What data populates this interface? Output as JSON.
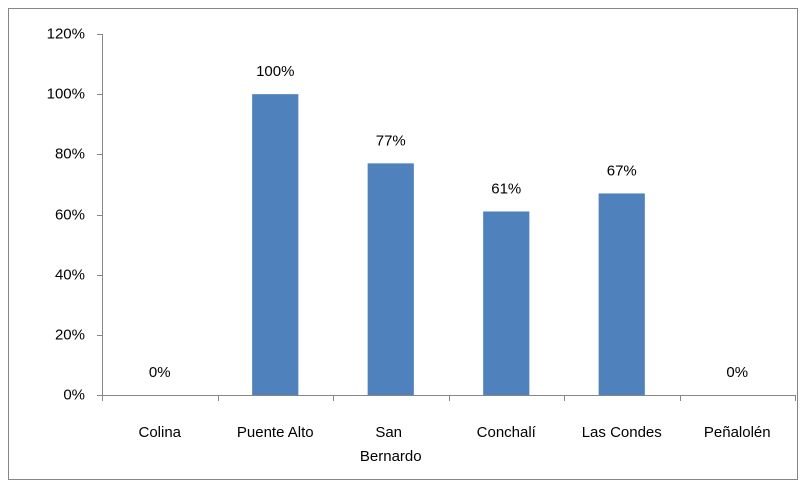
{
  "chart_data": {
    "type": "bar",
    "categories": [
      "Colina",
      "Puente Alto",
      "San Bernardo",
      "Conchalí",
      "Las Condes",
      "Peñalolén"
    ],
    "values": [
      0,
      100,
      77,
      61,
      67,
      0
    ],
    "value_labels": [
      "0%",
      "100%",
      "77%",
      "61%",
      "67%",
      "0%"
    ],
    "color": "#4f81bd",
    "ylim": [
      0,
      120
    ],
    "yticks": [
      {
        "value": 0,
        "label": "0%"
      },
      {
        "value": 20,
        "label": "20%"
      },
      {
        "value": 40,
        "label": "40%"
      },
      {
        "value": 60,
        "label": "60%"
      },
      {
        "value": 80,
        "label": "80%"
      },
      {
        "value": 100,
        "label": "100%"
      },
      {
        "value": 120,
        "label": "120%"
      }
    ],
    "grid": false
  }
}
